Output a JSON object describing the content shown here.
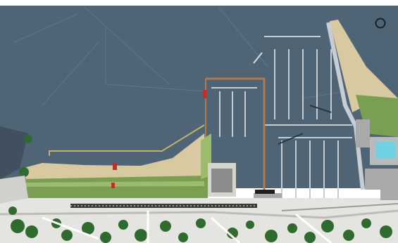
{
  "map": {
    "colors": {
      "water": "#4f6475",
      "water_grid": "#6a7d8c",
      "sand": "#d9c9a0",
      "lawn": "#7a9e52",
      "lawn_light": "#9cbb6c",
      "dock": "#c7cdd2",
      "pier_outline": "#b2794d",
      "ground": "#e4e4e0",
      "building": "#a9a9a9",
      "pool": "#6fd1e2",
      "tree": "#2f6a2f",
      "marker": "#c0302a",
      "railway": "#3a3a3a"
    },
    "icons": {
      "compass": "circle-ring-icon"
    }
  }
}
